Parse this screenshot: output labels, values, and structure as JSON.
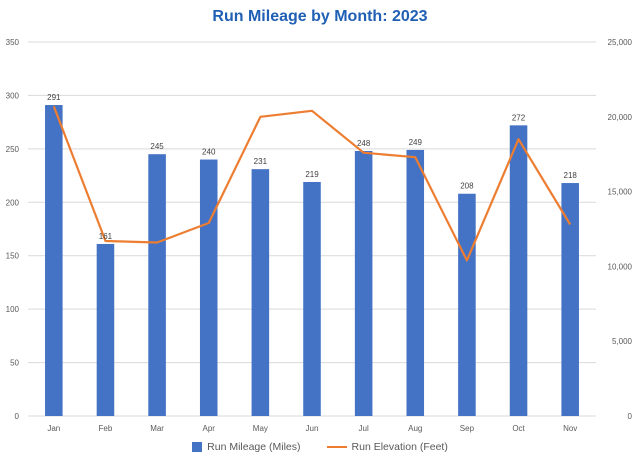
{
  "chart_data": {
    "type": "bar+line",
    "title": "Run Mileage by Month:  2023",
    "categories": [
      "Jan",
      "Feb",
      "Mar",
      "Apr",
      "May",
      "Jun",
      "Jul",
      "Aug",
      "Sep",
      "Oct",
      "Nov"
    ],
    "series": [
      {
        "name": "Run Mileage (Miles)",
        "type": "bar",
        "axis": "left",
        "color": "#4472c4",
        "values": [
          291,
          161,
          245,
          240,
          231,
          219,
          248,
          249,
          208,
          272,
          218
        ],
        "data_labels": [
          "291",
          "161",
          "245",
          "240",
          "231",
          "219",
          "248",
          "249",
          "208",
          "272",
          "218"
        ]
      },
      {
        "name": "Run Elevation (Feet)",
        "type": "line",
        "axis": "right",
        "color": "#ed7d31",
        "values": [
          20700,
          11700,
          11600,
          12900,
          20000,
          20400,
          17600,
          17300,
          10400,
          18500,
          12800
        ]
      }
    ],
    "y_left": {
      "min": 0,
      "max": 350,
      "step": 50,
      "ticks": [
        "0",
        "50",
        "100",
        "150",
        "200",
        "250",
        "300",
        "350"
      ]
    },
    "y_right": {
      "min": 0,
      "max": 25000,
      "step": 5000,
      "ticks": [
        "0",
        "5,000",
        "10,000",
        "15,000",
        "20,000",
        "25,000"
      ]
    },
    "grid": true,
    "legend_position": "bottom"
  }
}
